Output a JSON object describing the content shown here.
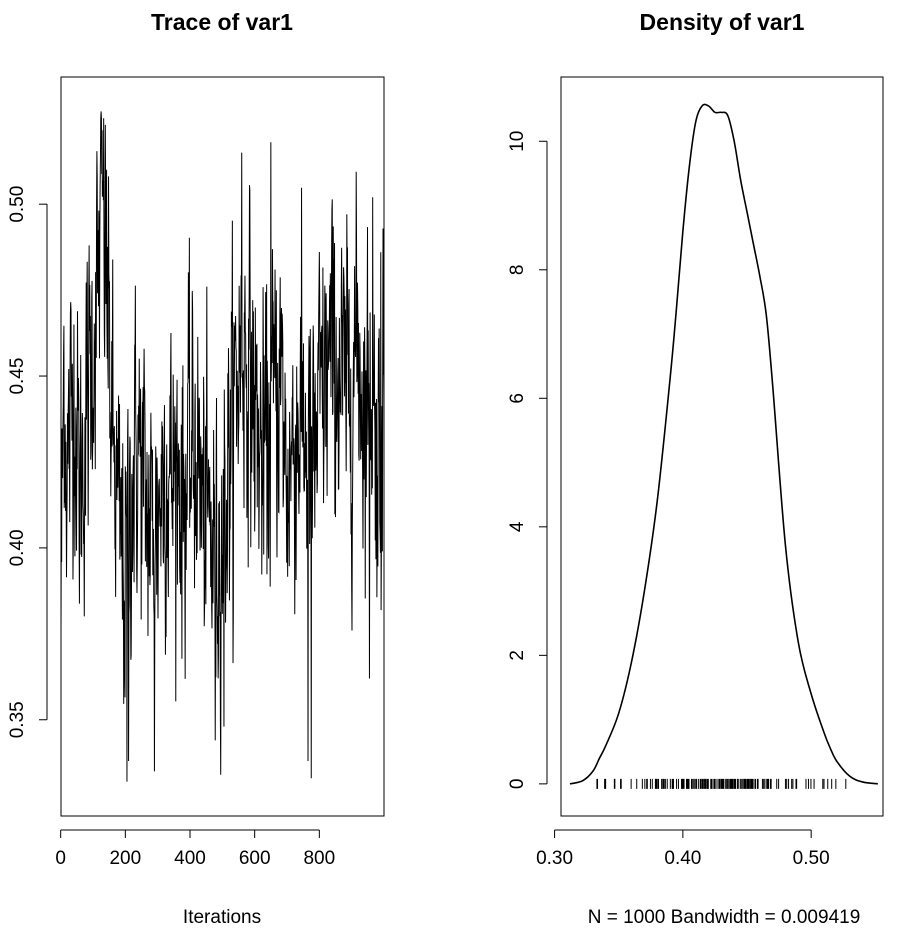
{
  "chart_data": [
    {
      "type": "line",
      "title": "Trace of var1",
      "xlabel": "Iterations",
      "ylabel": "",
      "xlim": [
        1,
        1000
      ],
      "ylim": [
        0.322,
        0.537
      ],
      "x_ticks": [
        0,
        200,
        400,
        600,
        800
      ],
      "x_tick_labels": [
        "0",
        "200",
        "400",
        "600",
        "800"
      ],
      "y_ticks": [
        0.35,
        0.4,
        0.45,
        0.5
      ],
      "y_tick_labels": [
        "0.35",
        "0.40",
        "0.45",
        "0.50"
      ],
      "grid": false,
      "series": [
        {
          "x_start": 1,
          "x_step": 1,
          "n": 1000,
          "anchors": [
            [
              1,
              0.382
            ],
            [
              10,
              0.455
            ],
            [
              20,
              0.42
            ],
            [
              40,
              0.45
            ],
            [
              60,
              0.415
            ],
            [
              80,
              0.44
            ],
            [
              100,
              0.46
            ],
            [
              120,
              0.485
            ],
            [
              130,
              0.5
            ],
            [
              145,
              0.47
            ],
            [
              160,
              0.43
            ],
            [
              180,
              0.405
            ],
            [
              200,
              0.39
            ],
            [
              220,
              0.42
            ],
            [
              240,
              0.43
            ],
            [
              260,
              0.415
            ],
            [
              280,
              0.405
            ],
            [
              300,
              0.41
            ],
            [
              320,
              0.425
            ],
            [
              340,
              0.42
            ],
            [
              360,
              0.425
            ],
            [
              380,
              0.415
            ],
            [
              400,
              0.425
            ],
            [
              420,
              0.43
            ],
            [
              440,
              0.41
            ],
            [
              460,
              0.405
            ],
            [
              480,
              0.395
            ],
            [
              500,
              0.405
            ],
            [
              520,
              0.425
            ],
            [
              540,
              0.445
            ],
            [
              560,
              0.46
            ],
            [
              580,
              0.455
            ],
            [
              600,
              0.44
            ],
            [
              620,
              0.425
            ],
            [
              640,
              0.43
            ],
            [
              660,
              0.445
            ],
            [
              680,
              0.45
            ],
            [
              700,
              0.42
            ],
            [
              720,
              0.43
            ],
            [
              740,
              0.44
            ],
            [
              760,
              0.43
            ],
            [
              780,
              0.42
            ],
            [
              800,
              0.44
            ],
            [
              820,
              0.45
            ],
            [
              840,
              0.455
            ],
            [
              860,
              0.45
            ],
            [
              880,
              0.445
            ],
            [
              900,
              0.45
            ],
            [
              920,
              0.46
            ],
            [
              940,
              0.44
            ],
            [
              960,
              0.45
            ],
            [
              980,
              0.425
            ],
            [
              1000,
              0.44
            ]
          ],
          "noise_sd": 0.021,
          "spikes": [
            [
              125,
              0.527
            ],
            [
              142,
              0.51
            ],
            [
              205,
              0.332
            ],
            [
              210,
              0.338
            ],
            [
              290,
              0.335
            ],
            [
              478,
              0.344
            ],
            [
              505,
              0.348
            ],
            [
              560,
              0.515
            ],
            [
              650,
              0.518
            ],
            [
              765,
              0.338
            ],
            [
              775,
              0.333
            ],
            [
              955,
              0.362
            ],
            [
              965,
              0.502
            ],
            [
              990,
              0.486
            ],
            [
              995,
              0.399
            ]
          ]
        }
      ]
    },
    {
      "type": "line",
      "title": "Density of var1",
      "xlabel": "N = 1000   Bandwidth = 0.009419",
      "ylabel": "",
      "xlim": [
        0.305,
        0.556
      ],
      "ylim": [
        -0.5,
        11.0
      ],
      "x_ticks": [
        0.3,
        0.4,
        0.5
      ],
      "x_tick_labels": [
        "0.30",
        "0.40",
        "0.50"
      ],
      "y_ticks": [
        0,
        2,
        4,
        6,
        8,
        10
      ],
      "y_tick_labels": [
        "0",
        "2",
        "4",
        "6",
        "8",
        "10"
      ],
      "grid": false,
      "series": [
        {
          "x": [
            0.312,
            0.322,
            0.33,
            0.335,
            0.34,
            0.35,
            0.36,
            0.37,
            0.38,
            0.39,
            0.395,
            0.4,
            0.405,
            0.41,
            0.415,
            0.42,
            0.425,
            0.43,
            0.435,
            0.44,
            0.445,
            0.45,
            0.455,
            0.46,
            0.465,
            0.47,
            0.48,
            0.49,
            0.5,
            0.51,
            0.515,
            0.52,
            0.53,
            0.54,
            0.552
          ],
          "y": [
            0.0,
            0.05,
            0.2,
            0.4,
            0.6,
            1.1,
            1.9,
            3.0,
            4.4,
            6.3,
            7.4,
            8.6,
            9.6,
            10.3,
            10.55,
            10.55,
            10.45,
            10.45,
            10.4,
            10.0,
            9.4,
            8.9,
            8.4,
            7.9,
            7.3,
            6.2,
            3.7,
            2.2,
            1.4,
            0.8,
            0.55,
            0.35,
            0.12,
            0.03,
            0.0
          ]
        }
      ],
      "rug": {
        "range": [
          0.333,
          0.527
        ],
        "n": 1000
      }
    }
  ]
}
